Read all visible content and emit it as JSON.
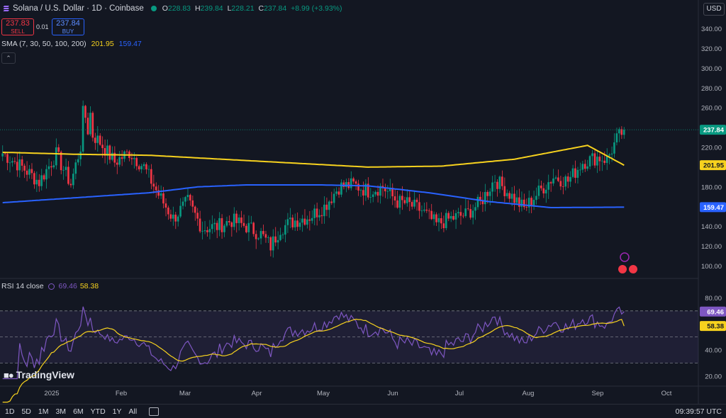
{
  "header": {
    "symbol": "Solana / U.S. Dollar · 1D · Coinbase",
    "o_label": "O",
    "o": "228.83",
    "h_label": "H",
    "h": "239.84",
    "l_label": "L",
    "l": "228.21",
    "c_label": "C",
    "c": "237.84",
    "change": "+8.99 (+3.93%)"
  },
  "trade": {
    "sell_price": "237.83",
    "sell_label": "SELL",
    "spread": "0.01",
    "buy_price": "237.84",
    "buy_label": "BUY"
  },
  "sma_legend": {
    "label": "SMA (7, 30, 50, 100, 200)",
    "v1": "201.95",
    "v2": "159.47"
  },
  "rsi_legend": {
    "label": "RSI 14 close",
    "v1": "69.46",
    "v2": "58.38"
  },
  "currency_button": "USD",
  "brand": "TradingView",
  "bottom": {
    "ranges": [
      "1D",
      "5D",
      "1M",
      "3M",
      "6M",
      "YTD",
      "1Y",
      "All"
    ],
    "clock": "09:39:57 UTC"
  },
  "colors": {
    "up": "#089981",
    "down": "#f23645",
    "sma_fast": "#f7d21e",
    "sma_slow": "#2962ff",
    "rsi": "#7e57c2",
    "rsi_ma": "#f7d21e",
    "background": "#131722"
  },
  "chart_data": [
    {
      "type": "candlestick",
      "x_axis_labels": [
        "2025",
        "Feb",
        "Mar",
        "Apr",
        "May",
        "Jun",
        "Jul",
        "Aug",
        "Sep",
        "Oct"
      ],
      "y_ticks": [
        100,
        120,
        140,
        160,
        180,
        200,
        220,
        240,
        260,
        280,
        300,
        320,
        340
      ],
      "ylim": [
        88,
        352
      ],
      "last_price": 237.84,
      "series": [
        {
          "name": "SMA 200",
          "values": [
            [
              0,
              201.95
            ]
          ],
          "key_points": [
            [
              0,
              215
            ],
            [
              30,
              213
            ],
            [
              60,
              212
            ],
            [
              90,
              208
            ],
            [
              120,
              204
            ],
            [
              150,
              200
            ],
            [
              180,
              201
            ],
            [
              210,
              208
            ],
            [
              240,
              222
            ],
            [
              255,
              201.95
            ]
          ]
        },
        {
          "name": "SMA 100",
          "key_points": [
            [
              0,
              164
            ],
            [
              30,
              169
            ],
            [
              60,
              174
            ],
            [
              80,
              180
            ],
            [
              100,
              182
            ],
            [
              130,
              182
            ],
            [
              150,
              181
            ],
            [
              175,
              174
            ],
            [
              200,
              165
            ],
            [
              225,
              159
            ],
            [
              255,
              159.47
            ]
          ]
        }
      ],
      "price_path": [
        [
          0,
          214
        ],
        [
          8,
          200
        ],
        [
          15,
          185
        ],
        [
          22,
          213
        ],
        [
          28,
          183
        ],
        [
          34,
          240
        ],
        [
          40,
          225
        ],
        [
          46,
          205
        ],
        [
          52,
          215
        ],
        [
          58,
          200
        ],
        [
          64,
          172
        ],
        [
          70,
          148
        ],
        [
          76,
          165
        ],
        [
          82,
          138
        ],
        [
          88,
          140
        ],
        [
          94,
          146
        ],
        [
          100,
          140
        ],
        [
          106,
          132
        ],
        [
          110,
          120
        ],
        [
          114,
          138
        ],
        [
          120,
          146
        ],
        [
          126,
          150
        ],
        [
          132,
          160
        ],
        [
          138,
          180
        ],
        [
          144,
          182
        ],
        [
          150,
          176
        ],
        [
          156,
          180
        ],
        [
          162,
          165
        ],
        [
          166,
          163
        ],
        [
          172,
          156
        ],
        [
          178,
          142
        ],
        [
          184,
          148
        ],
        [
          190,
          152
        ],
        [
          196,
          164
        ],
        [
          202,
          188
        ],
        [
          206,
          178
        ],
        [
          210,
          168
        ],
        [
          214,
          158
        ],
        [
          220,
          175
        ],
        [
          226,
          190
        ],
        [
          232,
          186
        ],
        [
          238,
          205
        ],
        [
          244,
          210
        ],
        [
          248,
          208
        ],
        [
          252,
          228
        ],
        [
          255,
          237.84
        ]
      ]
    },
    {
      "type": "line",
      "title": "RSI 14 close",
      "y_ticks": [
        20,
        40,
        60,
        80
      ],
      "bands": [
        30,
        50,
        70
      ],
      "series": [
        {
          "name": "RSI",
          "last": 69.46
        },
        {
          "name": "RSI MA",
          "last": 58.38
        }
      ]
    }
  ]
}
